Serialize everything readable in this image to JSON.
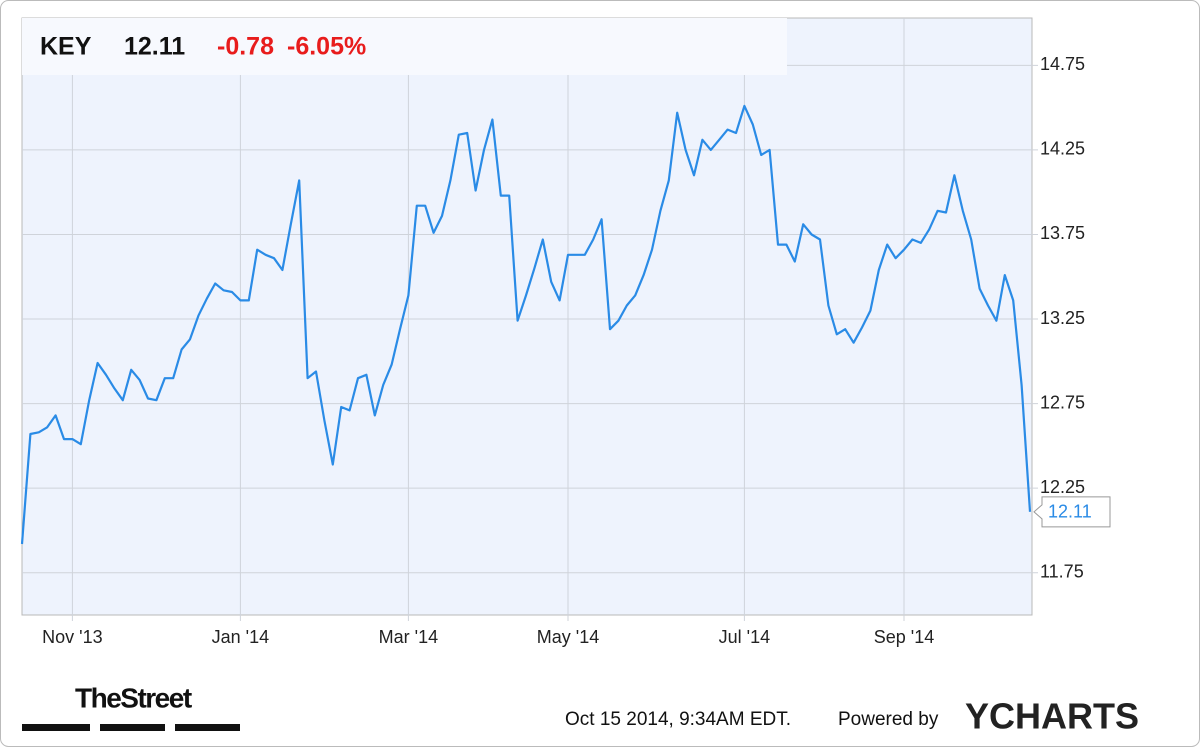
{
  "chart_data": {
    "type": "line",
    "header": {
      "ticker": "KEY",
      "change": "-0.78",
      "change_pct": "-6.05%"
    },
    "categories": [
      null,
      null,
      null,
      null,
      null,
      null,
      "Nov '13",
      null,
      null,
      null,
      null,
      null,
      null,
      null,
      null,
      null,
      null,
      null,
      null,
      null,
      null,
      null,
      null,
      null,
      null,
      null,
      "Jan '14",
      null,
      null,
      null,
      null,
      null,
      null,
      null,
      null,
      null,
      null,
      null,
      null,
      null,
      null,
      null,
      null,
      null,
      null,
      null,
      "Mar '14",
      null,
      null,
      null,
      null,
      null,
      null,
      null,
      null,
      null,
      null,
      null,
      null,
      null,
      null,
      null,
      null,
      null,
      null,
      "May '14",
      null,
      null,
      null,
      null,
      null,
      null,
      null,
      null,
      null,
      null,
      null,
      null,
      null,
      null,
      null,
      null,
      null,
      null,
      null,
      null,
      "Jul '14",
      null,
      null,
      null,
      null,
      null,
      null,
      null,
      null,
      null,
      null,
      null,
      null,
      null,
      null,
      null,
      null,
      null,
      null,
      "Sep '14",
      null,
      null,
      null,
      null,
      null,
      null,
      null,
      null,
      null,
      null,
      null,
      null,
      null,
      null,
      null
    ],
    "series": [
      {
        "name": "KEY",
        "color": "#2a8be6",
        "values": [
          11.92,
          12.57,
          12.58,
          12.61,
          12.68,
          12.54,
          12.54,
          12.51,
          12.77,
          12.99,
          12.92,
          12.84,
          12.77,
          12.95,
          12.89,
          12.78,
          12.77,
          12.9,
          12.9,
          13.07,
          13.13,
          13.27,
          13.37,
          13.46,
          13.42,
          13.41,
          13.36,
          13.36,
          13.66,
          13.63,
          13.61,
          13.54,
          13.81,
          14.07,
          12.9,
          12.94,
          12.65,
          12.39,
          12.73,
          12.71,
          12.9,
          12.92,
          12.68,
          12.86,
          12.98,
          13.19,
          13.39,
          13.92,
          13.92,
          13.76,
          13.86,
          14.07,
          14.34,
          14.35,
          14.01,
          14.25,
          14.43,
          13.98,
          13.98,
          13.24,
          13.39,
          13.55,
          13.72,
          13.47,
          13.36,
          13.63,
          13.63,
          13.63,
          13.72,
          13.84,
          13.19,
          13.24,
          13.33,
          13.39,
          13.51,
          13.66,
          13.89,
          14.07,
          14.47,
          14.25,
          14.1,
          14.31,
          14.25,
          14.31,
          14.37,
          14.35,
          14.51,
          14.4,
          14.22,
          14.25,
          13.69,
          13.69,
          13.59,
          13.81,
          13.75,
          13.72,
          13.33,
          13.16,
          13.19,
          13.11,
          13.2,
          13.3,
          13.54,
          13.69,
          13.61,
          13.66,
          13.72,
          13.7,
          13.78,
          13.89,
          13.88,
          14.1,
          13.89,
          13.72,
          13.43,
          13.33,
          13.24,
          13.51,
          13.36,
          12.86,
          12.11
        ]
      }
    ],
    "ylim": [
      11.5,
      15.03
    ],
    "yticks": [
      11.75,
      12.25,
      12.75,
      13.25,
      13.75,
      14.25,
      14.75
    ],
    "grid": true,
    "footer": {
      "source": "TheStreet",
      "timestamp": "Oct 15 2014, 9:34AM EDT.",
      "powered": "Powered by",
      "brand": "YCHARTS"
    }
  }
}
